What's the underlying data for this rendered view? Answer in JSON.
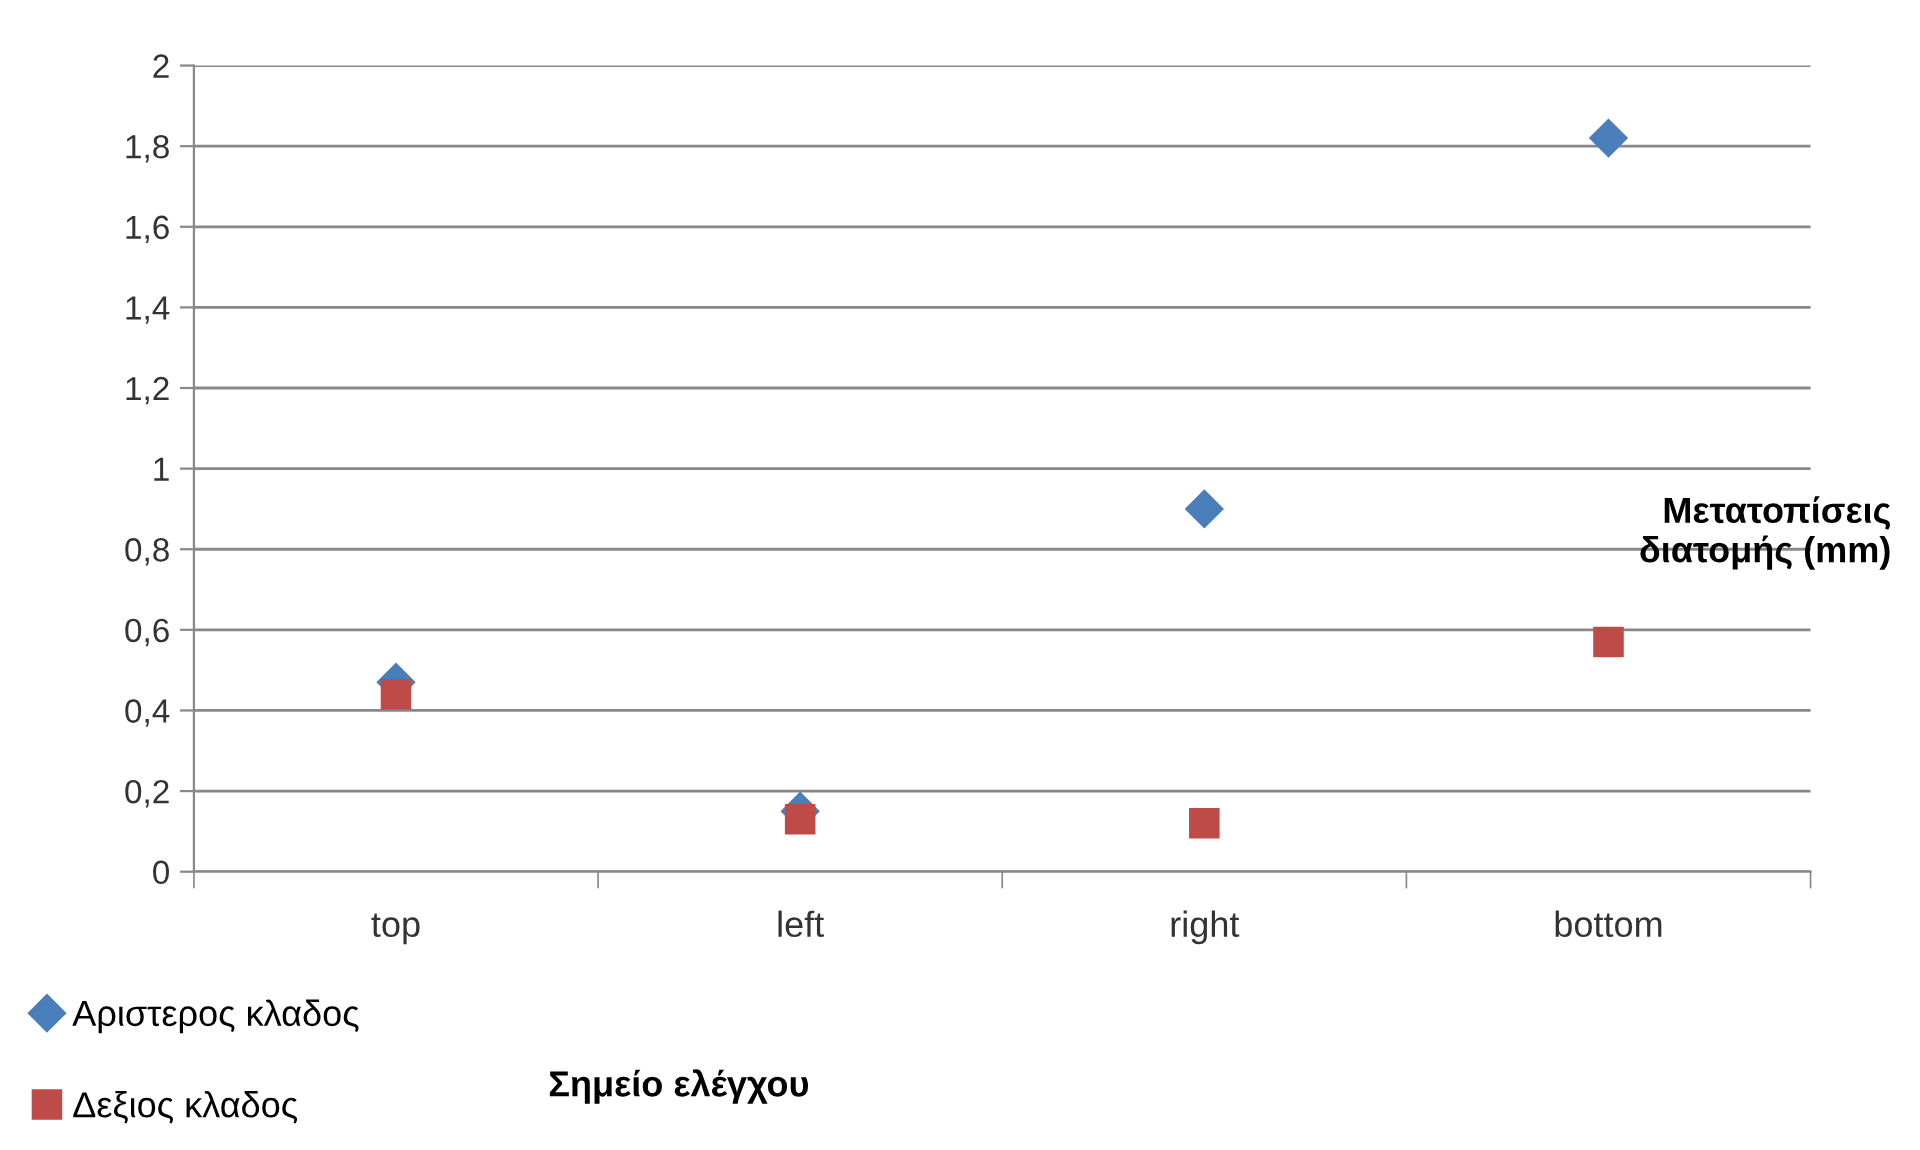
{
  "chart_data": {
    "type": "scatter",
    "xlabel": "Σημείο ελέγχου",
    "ylabel": "Μετατοπίσεις\nδιατομής (mm)",
    "categories": [
      "top",
      "left",
      "right",
      "bottom"
    ],
    "series": [
      {
        "name": "Αριστερος κλαδος",
        "color": "#4a7ebb",
        "marker": "diamond",
        "values": [
          0.47,
          0.15,
          0.9,
          1.82
        ]
      },
      {
        "name": "Δεξιος κλαδος",
        "color": "#be4b48",
        "marker": "square",
        "values": [
          0.44,
          0.13,
          0.12,
          0.57
        ]
      }
    ],
    "ylim": [
      0,
      2
    ],
    "yticks": [
      0,
      {
        "value": 0.2,
        "label": "0,2"
      },
      {
        "value": 0.4,
        "label": "0,4"
      },
      {
        "value": 0.6,
        "label": "0,6"
      },
      {
        "value": 0.8,
        "label": "0,8"
      },
      1,
      {
        "value": 1.2,
        "label": "1,2"
      },
      {
        "value": 1.4,
        "label": "1,4"
      },
      {
        "value": 1.6,
        "label": "1,6"
      },
      {
        "value": 1.8,
        "label": "1,8"
      },
      2
    ],
    "grid": "y",
    "legend": "bottom left"
  }
}
